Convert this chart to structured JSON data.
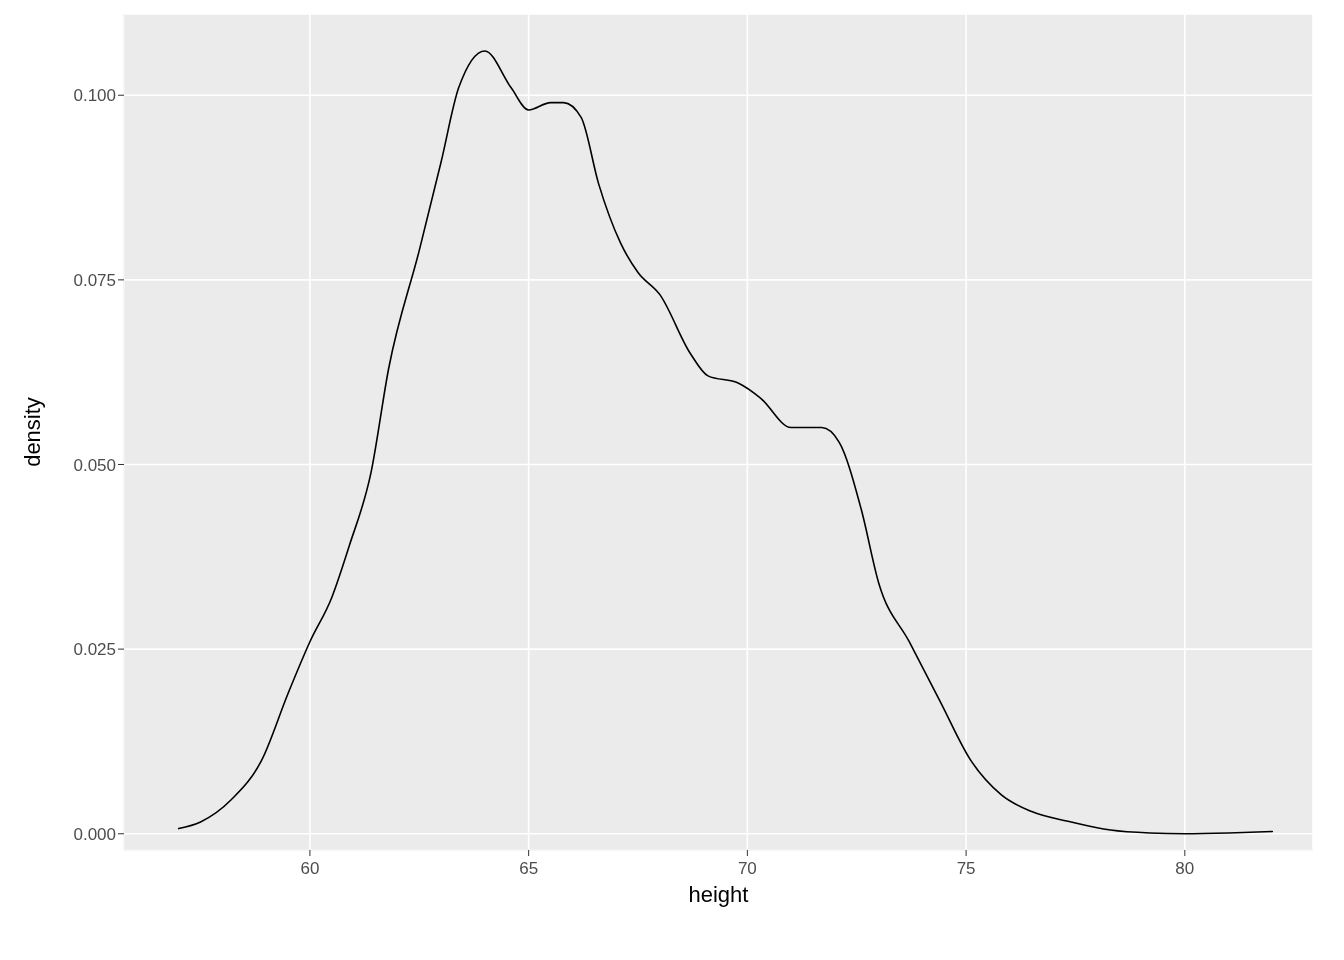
{
  "chart_data": {
    "type": "line",
    "xlabel": "height",
    "ylabel": "density",
    "x": [
      57.0,
      57.5,
      58.2,
      58.9,
      59.5,
      60.0,
      60.5,
      60.9,
      61.4,
      61.8,
      62.5,
      63.0,
      63.4,
      64.0,
      64.6,
      65.0,
      65.5,
      65.8,
      66.2,
      66.6,
      67.1,
      67.5,
      68.0,
      68.7,
      69.1,
      69.8,
      70.3,
      71.0,
      71.7,
      72.1,
      72.6,
      73.0,
      73.7,
      74.4,
      75.1,
      75.8,
      76.5,
      77.4,
      78.3,
      79.2,
      80.0,
      81.0,
      82.0
    ],
    "series": [
      {
        "color": "#000000",
        "values": [
          0.0007,
          0.0016,
          0.0046,
          0.01,
          0.019,
          0.026,
          0.032,
          0.039,
          0.049,
          0.063,
          0.079,
          0.091,
          0.101,
          0.106,
          0.101,
          0.098,
          0.099,
          0.099,
          0.097,
          0.088,
          0.08,
          0.076,
          0.073,
          0.065,
          0.062,
          0.061,
          0.059,
          0.055,
          0.055,
          0.053,
          0.044,
          0.034,
          0.026,
          0.018,
          0.01,
          0.0053,
          0.003,
          0.0016,
          0.0005,
          0.0001,
          0,
          0.0001,
          0.0003
        ]
      }
    ],
    "xlim": [
      55.75,
      82.93
    ],
    "ylim": [
      -0.0022,
      0.111
    ],
    "xticks": [
      60,
      65,
      70,
      75,
      80
    ],
    "yticks": [
      {
        "value": 0,
        "label": "0.000"
      },
      {
        "value": 0.025,
        "label": "0.025"
      },
      {
        "value": 0.05,
        "label": "0.050"
      },
      {
        "value": 0.075,
        "label": "0.075"
      },
      {
        "value": 0.1,
        "label": "0.100"
      }
    ],
    "grid": true,
    "marker": "none",
    "line_style": "solid"
  }
}
